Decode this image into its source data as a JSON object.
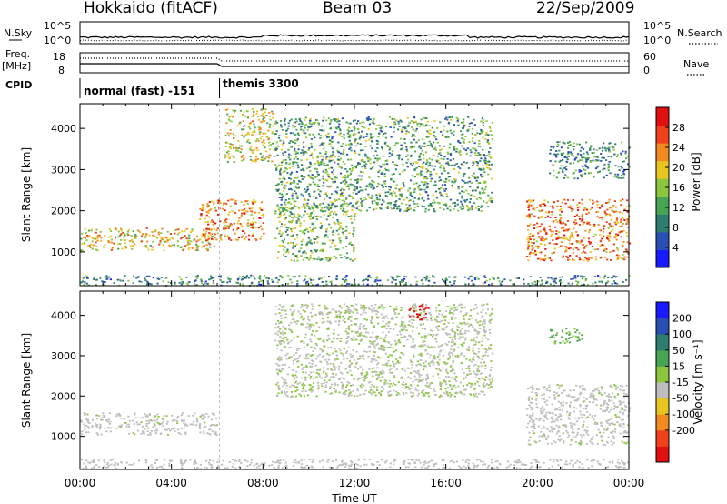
{
  "header": {
    "site": "Hokkaido (fitACF)",
    "beam": "Beam 03",
    "date": "22/Sep/2009"
  },
  "nsky": {
    "label_top": "N.Sky",
    "left_ticks": [
      "10^5",
      "10^0"
    ],
    "right_ticks": [
      "10^5",
      "10^0"
    ],
    "right_label": "N.Search"
  },
  "freq": {
    "label_top": "Freq.",
    "label_unit": "[MHz]",
    "left_ticks": [
      "18",
      "8"
    ],
    "right_ticks": [
      "60",
      "0"
    ],
    "right_label": "Nave"
  },
  "cpid": {
    "label": "CPID",
    "segments": [
      {
        "text": "normal (fast) -151",
        "start_hour": 0,
        "end_hour": 6.1
      },
      {
        "text": "themis 3300",
        "start_hour": 6.1,
        "end_hour": 24
      }
    ]
  },
  "icons": {
    "colorbar": "gradient-bar"
  },
  "colors": {
    "background": "#ffffff",
    "ground_scatter": "#bebebe"
  },
  "chart_data": [
    {
      "type": "heatmap",
      "panel": "power",
      "xlabel": "Time UT",
      "ylabel": "Slant Range [km]",
      "xlim": [
        0,
        24
      ],
      "ylim": [
        180,
        4600
      ],
      "x_ticks": [
        "00:00",
        "04:00",
        "08:00",
        "12:00",
        "16:00",
        "20:00",
        "00:00"
      ],
      "y_ticks": [
        1000,
        2000,
        3000,
        4000
      ],
      "colorbar": {
        "label": "Power [dB]",
        "ticks": [
          4,
          8,
          12,
          16,
          20,
          24,
          28
        ],
        "range": [
          0,
          32
        ],
        "colors": [
          "#1a1aff",
          "#2a4fb4",
          "#2e7d6e",
          "#48a455",
          "#8cc63f",
          "#e8c520",
          "#f28a1f",
          "#f0401c",
          "#e01010"
        ]
      },
      "regions": [
        {
          "desc": "ground scatter band",
          "t": [
            0.0,
            6.0
          ],
          "r": [
            1050,
            1600
          ],
          "power": 20
        },
        {
          "desc": "enhanced echoes",
          "t": [
            5.2,
            8.0
          ],
          "r": [
            1300,
            2300
          ],
          "power": 24
        },
        {
          "desc": "high-range echoes",
          "t": [
            6.3,
            8.5
          ],
          "r": [
            3200,
            4500
          ],
          "power": 18
        },
        {
          "desc": "scattered ionospheric",
          "t": [
            8.5,
            18.0
          ],
          "r": [
            2000,
            4300
          ],
          "power": 12
        },
        {
          "desc": "arc",
          "t": [
            8.5,
            12.0
          ],
          "r": [
            800,
            2200
          ],
          "power": 14
        },
        {
          "desc": "evening band",
          "t": [
            19.5,
            24.0
          ],
          "r": [
            800,
            2300
          ],
          "power": 24
        },
        {
          "desc": "evening high range",
          "t": [
            20.5,
            24.0
          ],
          "r": [
            2800,
            3700
          ],
          "power": 10
        },
        {
          "desc": "near range",
          "t": [
            0.0,
            24.0
          ],
          "r": [
            200,
            450
          ],
          "power": 10
        }
      ]
    },
    {
      "type": "heatmap",
      "panel": "velocity",
      "xlabel": "Time UT",
      "ylabel": "Slant Range [km]",
      "xlim": [
        0,
        24
      ],
      "ylim": [
        180,
        4600
      ],
      "x_ticks": [
        "00:00",
        "04:00",
        "08:00",
        "12:00",
        "16:00",
        "20:00",
        "00:00"
      ],
      "y_ticks": [
        1000,
        2000,
        3000,
        4000
      ],
      "colorbar": {
        "label": "Velocity [m s⁻¹]",
        "ticks": [
          "200",
          "100",
          "50",
          "15",
          "-15",
          "-50",
          "-100",
          "-200"
        ],
        "range": [
          -250,
          250
        ],
        "colors": [
          "#e01010",
          "#f0401c",
          "#f28a1f",
          "#e8c520",
          "#bebebe",
          "#8cc63f",
          "#48a455",
          "#2e7d6e",
          "#2a4fb4",
          "#1a1aff"
        ]
      },
      "regions": [
        {
          "desc": "ground scatter band",
          "t": [
            0.0,
            6.0
          ],
          "r": [
            1050,
            1600
          ],
          "velocity": 0
        },
        {
          "desc": "scattered ionospheric",
          "t": [
            8.5,
            18.0
          ],
          "r": [
            2000,
            4300
          ],
          "velocity": 10
        },
        {
          "desc": "red echoes",
          "t": [
            14.3,
            15.2
          ],
          "r": [
            3900,
            4300
          ],
          "velocity": -220
        },
        {
          "desc": "evening band",
          "t": [
            19.5,
            24.0
          ],
          "r": [
            800,
            2300
          ],
          "velocity": 0
        },
        {
          "desc": "evening green echoes",
          "t": [
            20.5,
            22.0
          ],
          "r": [
            3300,
            3700
          ],
          "velocity": 50
        },
        {
          "desc": "near range",
          "t": [
            0.0,
            24.0
          ],
          "r": [
            200,
            450
          ],
          "velocity": -30
        }
      ]
    }
  ]
}
